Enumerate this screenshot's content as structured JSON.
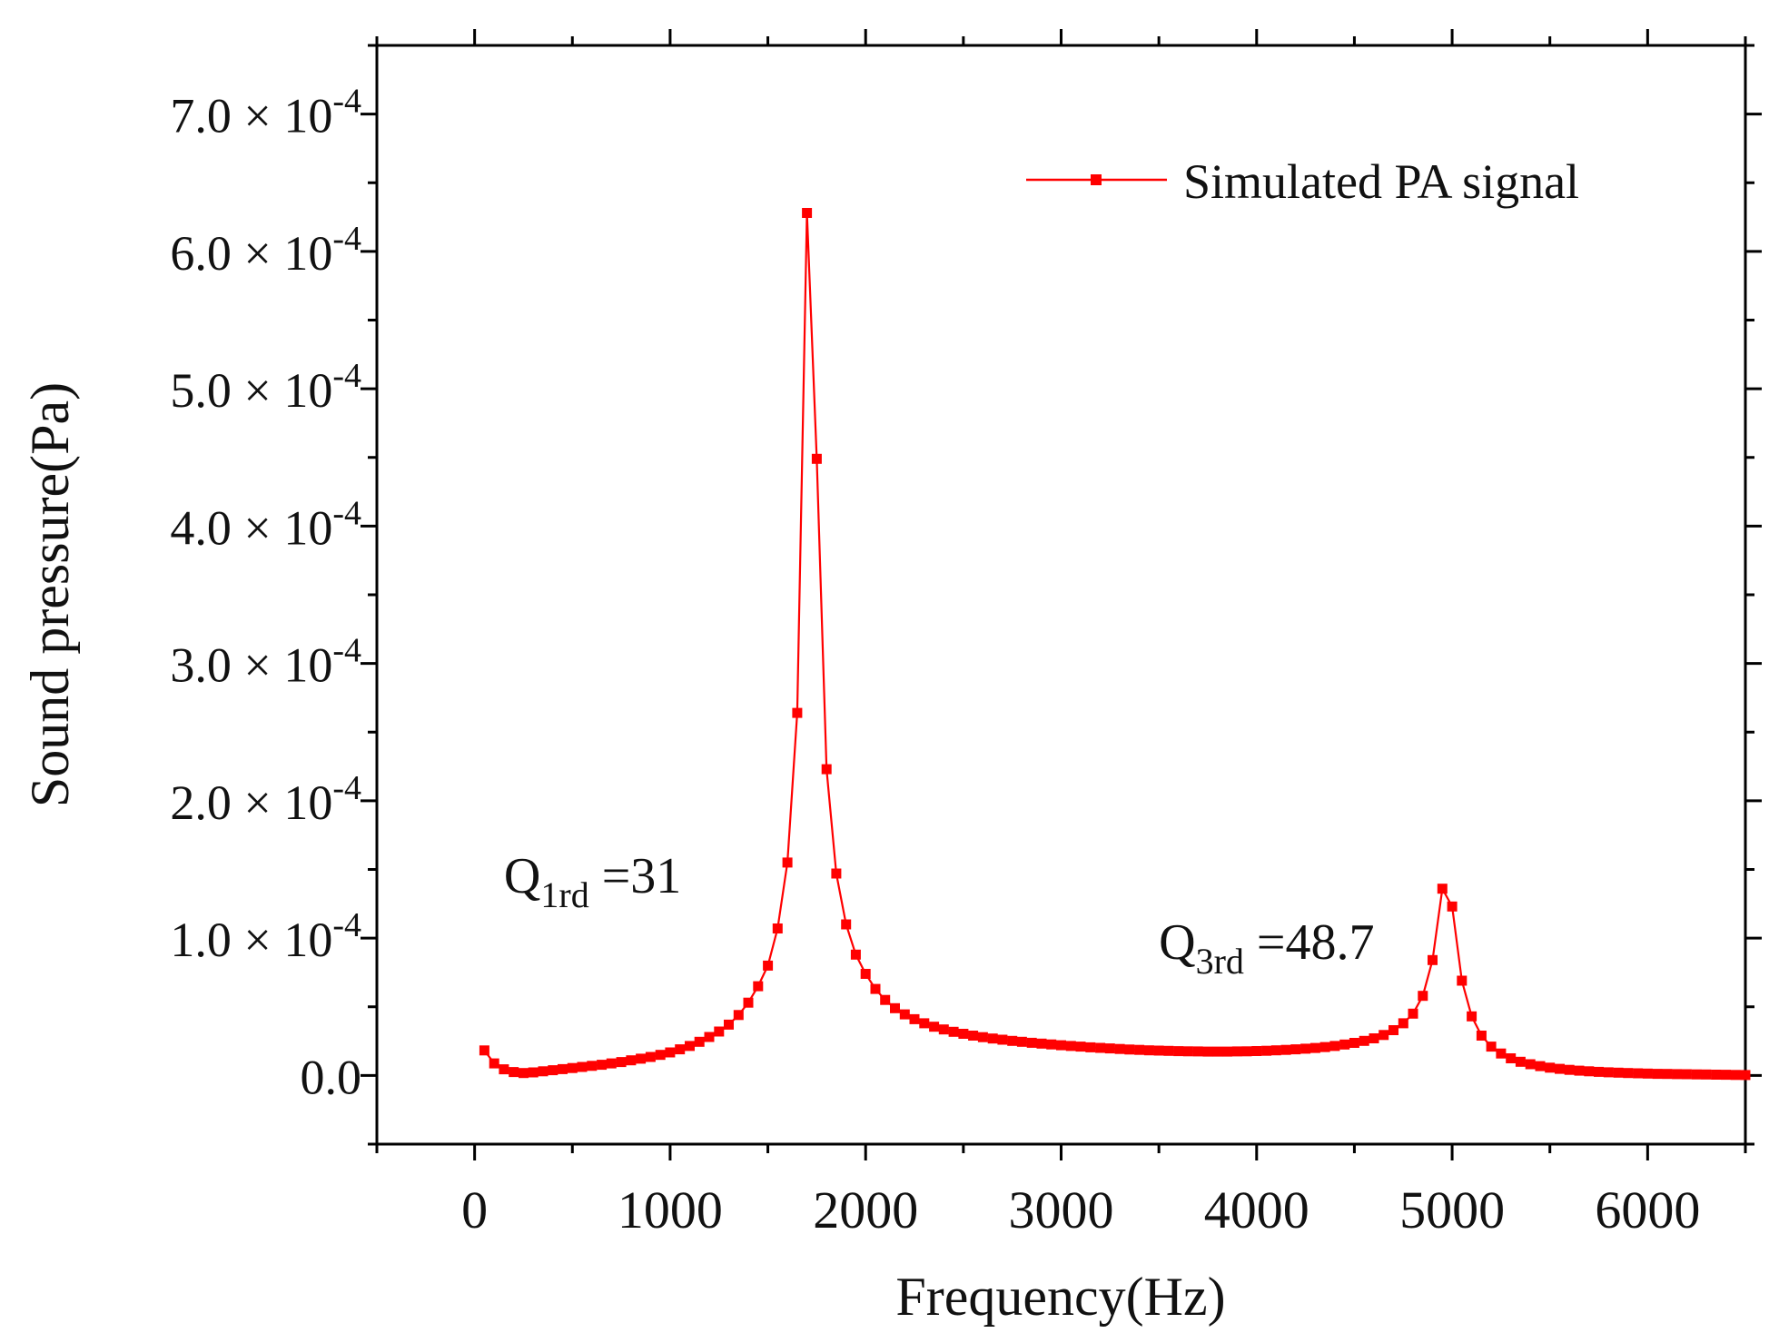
{
  "chart_data": {
    "type": "line",
    "title": "",
    "xlabel": "Frequency(Hz)",
    "ylabel": "Sound pressure(Pa)",
    "xlim": [
      -500,
      6500
    ],
    "ylim": [
      -5e-05,
      0.00075
    ],
    "x_ticks": [
      0,
      1000,
      2000,
      3000,
      4000,
      5000,
      6000
    ],
    "x_tick_labels": [
      "0",
      "1000",
      "2000",
      "3000",
      "4000",
      "5000",
      "6000"
    ],
    "y_ticks": [
      0,
      0.0001,
      0.0002,
      0.0003,
      0.0004,
      0.0005,
      0.0006,
      0.0007
    ],
    "y_tick_labels": [
      {
        "mantissa": "0.0",
        "times": "",
        "base": "",
        "exp": ""
      },
      {
        "mantissa": "1.0",
        "times": "×",
        "base": "10",
        "exp": "-4"
      },
      {
        "mantissa": "2.0",
        "times": "×",
        "base": "10",
        "exp": "-4"
      },
      {
        "mantissa": "3.0",
        "times": "×",
        "base": "10",
        "exp": "-4"
      },
      {
        "mantissa": "4.0",
        "times": "×",
        "base": "10",
        "exp": "-4"
      },
      {
        "mantissa": "5.0",
        "times": "×",
        "base": "10",
        "exp": "-4"
      },
      {
        "mantissa": "6.0",
        "times": "×",
        "base": "10",
        "exp": "-4"
      },
      {
        "mantissa": "7.0",
        "times": "×",
        "base": "10",
        "exp": "-4"
      }
    ],
    "legend": {
      "label": "Simulated PA signal",
      "position": "top-right"
    },
    "annotations": [
      {
        "main": "Q",
        "sub": "1rd",
        "rest": " =31",
        "x": 150,
        "y": 0.000133
      },
      {
        "main": "Q",
        "sub": "3rd",
        "rest": " =48.7",
        "x": 3500,
        "y": 8.5e-05
      }
    ],
    "series": [
      {
        "name": "Simulated PA signal",
        "color": "#ff0000",
        "marker": "square",
        "x": [
          50,
          100,
          150,
          200,
          250,
          300,
          350,
          400,
          450,
          500,
          550,
          600,
          650,
          700,
          750,
          800,
          850,
          900,
          950,
          1000,
          1050,
          1100,
          1150,
          1200,
          1250,
          1300,
          1350,
          1400,
          1450,
          1500,
          1550,
          1600,
          1650,
          1700,
          1750,
          1800,
          1850,
          1900,
          1950,
          2000,
          2050,
          2100,
          2150,
          2200,
          2250,
          2300,
          2350,
          2400,
          2450,
          2500,
          2550,
          2600,
          2650,
          2700,
          2750,
          2800,
          2850,
          2900,
          2950,
          3000,
          3050,
          3100,
          3150,
          3200,
          3250,
          3300,
          3350,
          3400,
          3450,
          3500,
          3550,
          3600,
          3650,
          3700,
          3750,
          3800,
          3850,
          3900,
          3950,
          4000,
          4050,
          4100,
          4150,
          4200,
          4250,
          4300,
          4350,
          4400,
          4450,
          4500,
          4550,
          4600,
          4650,
          4700,
          4750,
          4800,
          4850,
          4900,
          4950,
          5000,
          5050,
          5100,
          5150,
          5200,
          5250,
          5300,
          5350,
          5400,
          5450,
          5500,
          5550,
          5600,
          5650,
          5700,
          5750,
          5800,
          5850,
          5900,
          5950,
          6000,
          6050,
          6100,
          6150,
          6200,
          6250,
          6300,
          6350,
          6400,
          6450,
          6500
        ],
        "y": [
          1.82e-05,
          8.8e-06,
          4.5e-06,
          2.5e-06,
          1.8e-06,
          2.2e-06,
          3e-06,
          3.8e-06,
          4.6e-06,
          5.4e-06,
          6.2e-06,
          7e-06,
          7.8e-06,
          8.8e-06,
          9.8e-06,
          1.1e-05,
          1.22e-05,
          1.35e-05,
          1.5e-05,
          1.68e-05,
          1.9e-05,
          2.15e-05,
          2.45e-05,
          2.8e-05,
          3.2e-05,
          3.7e-05,
          4.4e-05,
          5.3e-05,
          6.5e-05,
          8e-05,
          0.000107,
          0.000155,
          0.000264,
          0.000628,
          0.000449,
          0.000223,
          0.000147,
          0.00011,
          8.8e-05,
          7.4e-05,
          6.3e-05,
          5.5e-05,
          4.9e-05,
          4.45e-05,
          4.1e-05,
          3.8e-05,
          3.55e-05,
          3.35e-05,
          3.18e-05,
          3.03e-05,
          2.9e-05,
          2.79e-05,
          2.69e-05,
          2.6e-05,
          2.52e-05,
          2.45e-05,
          2.38e-05,
          2.32e-05,
          2.26e-05,
          2.2e-05,
          2.15e-05,
          2.1e-05,
          2.05e-05,
          2.01e-05,
          1.97e-05,
          1.93e-05,
          1.89e-05,
          1.86e-05,
          1.83e-05,
          1.81e-05,
          1.79e-05,
          1.77e-05,
          1.76e-05,
          1.75e-05,
          1.74e-05,
          1.74e-05,
          1.74e-05,
          1.75e-05,
          1.76e-05,
          1.78e-05,
          1.8e-05,
          1.83e-05,
          1.86e-05,
          1.9e-05,
          1.95e-05,
          2e-05,
          2.07e-05,
          2.15e-05,
          2.25e-05,
          2.37e-05,
          2.52e-05,
          2.7e-05,
          2.95e-05,
          3.3e-05,
          3.8e-05,
          4.5e-05,
          5.8e-05,
          8.4e-05,
          0.000136,
          0.000123,
          6.9e-05,
          4.3e-05,
          2.9e-05,
          2.1e-05,
          1.6e-05,
          1.25e-05,
          1e-05,
          8.2e-06,
          6.8e-06,
          5.7e-06,
          4.8e-06,
          4.1e-06,
          3.5e-06,
          3e-06,
          2.6e-06,
          2.3e-06,
          2e-06,
          1.8e-06,
          1.6e-06,
          1.4e-06,
          1.2e-06,
          1.1e-06,
          1e-06,
          9e-07,
          8e-07,
          7e-07,
          6e-07,
          5e-07,
          4e-07,
          3e-07
        ]
      }
    ]
  }
}
